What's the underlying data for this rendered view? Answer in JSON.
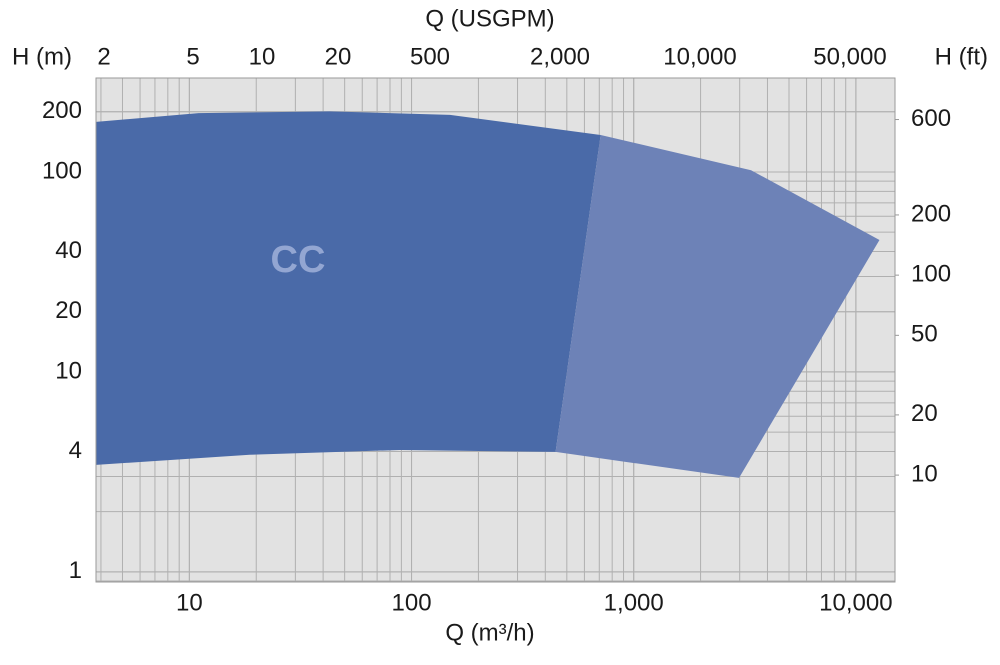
{
  "chart_data": {
    "type": "region",
    "x_label": "Q (m³/h)",
    "x2_label": "Q (USGPM)",
    "y_label": "H (m)",
    "y2_label": "H (ft)",
    "xscale": "log",
    "yscale": "log",
    "grid": true,
    "xlim": [
      3.8,
      15000
    ],
    "ylim": [
      0.89,
      295
    ],
    "y2lim": [
      2.92,
      968
    ],
    "xticks": [
      10,
      100,
      {
        "value": 1000,
        "label": "1,000"
      },
      {
        "value": 10000,
        "label": "10,000"
      }
    ],
    "yticks": [
      1,
      4,
      10,
      20,
      40,
      100,
      200
    ],
    "y2ticks": [
      10,
      20,
      50,
      100,
      200,
      600
    ],
    "x2_labels": [
      "2",
      "5",
      "10",
      "20",
      "500",
      "2,000",
      "10,000",
      "50,000"
    ],
    "series": [
      {
        "name": "CC",
        "color": "#4a6aa8",
        "x": [
          3.8,
          11,
          42.8,
          149,
          710,
          445,
          88.7,
          18.7,
          3.8
        ],
        "y": [
          178,
          197,
          201,
          193,
          153,
          3.98,
          4.07,
          3.85,
          3.43
        ]
      },
      {
        "color": "#6d82b7",
        "x": [
          710,
          3375,
          12770,
          2980,
          445
        ],
        "y": [
          153,
          102,
          45.7,
          2.95,
          3.98
        ]
      }
    ]
  }
}
